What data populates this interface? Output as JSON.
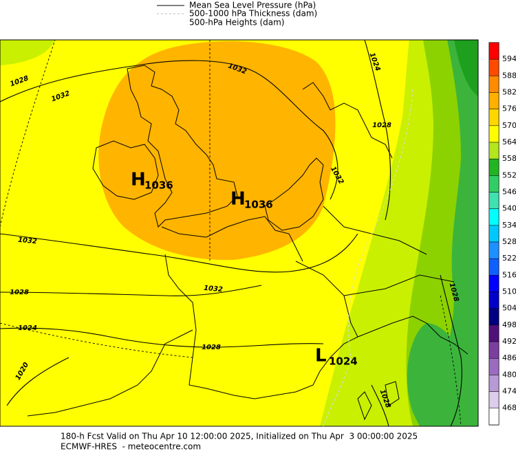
{
  "legend": {
    "entries": [
      "Mean Sea Level Pressure (hPa)",
      "500-1000 hPa Thickness (dam)",
      "500-hPa Heights (dam)"
    ]
  },
  "colorbar": {
    "labels": [
      "594",
      "588",
      "582",
      "576",
      "570",
      "564",
      "558",
      "552",
      "546",
      "540",
      "534",
      "528",
      "522",
      "516",
      "510",
      "504",
      "498",
      "492",
      "486",
      "480",
      "474",
      "468"
    ],
    "colors": [
      "#ff0000",
      "#ff4a00",
      "#ff8c00",
      "#ffb000",
      "#ffd700",
      "#ffff00",
      "#b4e61e",
      "#22b422",
      "#32cd64",
      "#40e0b0",
      "#00ffff",
      "#00c8ff",
      "#1e90ff",
      "#1060ff",
      "#0000ff",
      "#0000c8",
      "#000080",
      "#50107a",
      "#7b3fa0",
      "#9b6bc0",
      "#b89ad6",
      "#dccdea",
      "#ffffff"
    ]
  },
  "map": {
    "isobar_labels": [
      "1028",
      "1032",
      "1032",
      "1024",
      "1028",
      "1032",
      "1032",
      "1028",
      "1032",
      "1024",
      "1028",
      "1020",
      "1028",
      "1028"
    ],
    "centers": [
      {
        "symbol": "H",
        "value": "1036"
      },
      {
        "symbol": "H",
        "value": "1036"
      },
      {
        "symbol": "L",
        "value": "1024"
      }
    ]
  },
  "footer": {
    "lines": [
      "180-h Fcst Valid on Thu Apr 10 12:00:00 2025, Initialized on Thu Apr  3 00:00:00 2025",
      "ECMWF-HRES  - meteocentre.com"
    ]
  }
}
